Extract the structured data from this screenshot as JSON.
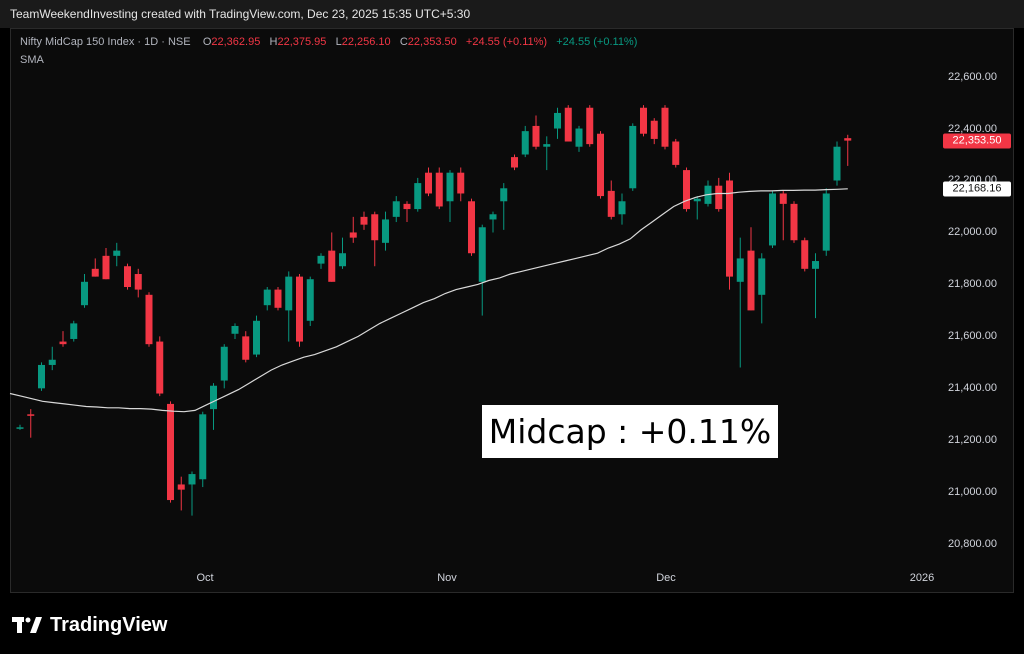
{
  "header": {
    "attribution": "TeamWeekendInvesting created with TradingView.com, Dec 23, 2025 15:35 UTC+5:30"
  },
  "legend": {
    "symbol": "Nifty MidCap 150 Index · 1D · NSE",
    "o_label": "O",
    "o_value": "22,362.95",
    "h_label": "H",
    "h_value": "22,375.95",
    "l_label": "L",
    "l_value": "22,256.10",
    "c_label": "C",
    "c_value": "22,353.50",
    "change": "+24.55 (+0.11%)",
    "sma_change": "+24.55 (+0.11%)",
    "indicator": "SMA"
  },
  "annotation": {
    "text": "Midcap : +0.11%"
  },
  "price_tags": {
    "last": "22,353.50",
    "sma": "22,168.16"
  },
  "footer": {
    "brand": "TradingView"
  },
  "colors": {
    "up": "#089981",
    "down": "#f23645",
    "sma": "#d9d9d9",
    "background": "#0b0b0b"
  },
  "chart_data": {
    "type": "candlestick",
    "title": "",
    "x_ticks": [
      "Oct",
      "Nov",
      "Dec",
      "2026"
    ],
    "y_ticks": [
      "20,800.00",
      "21,000.00",
      "21,200.00",
      "21,400.00",
      "21,600.00",
      "21,800.00",
      "22,000.00",
      "22,200.00",
      "22,400.00",
      "22,600.00"
    ],
    "y_tick_values": [
      20800,
      21000,
      21200,
      21400,
      21600,
      21800,
      22000,
      22200,
      22400,
      22600
    ],
    "ylim": [
      20720,
      22760
    ],
    "candles": [
      {
        "o": 21250,
        "h": 21260,
        "l": 21240,
        "c": 21250,
        "d": "up"
      },
      {
        "o": 21300,
        "h": 21320,
        "l": 21210,
        "c": 21300,
        "d": "down"
      },
      {
        "o": 21400,
        "h": 21500,
        "l": 21390,
        "c": 21490,
        "d": "up"
      },
      {
        "o": 21490,
        "h": 21560,
        "l": 21470,
        "c": 21510,
        "d": "up"
      },
      {
        "o": 21580,
        "h": 21620,
        "l": 21560,
        "c": 21570,
        "d": "down"
      },
      {
        "o": 21590,
        "h": 21660,
        "l": 21580,
        "c": 21650,
        "d": "up"
      },
      {
        "o": 21720,
        "h": 21840,
        "l": 21710,
        "c": 21810,
        "d": "up"
      },
      {
        "o": 21860,
        "h": 21900,
        "l": 21830,
        "c": 21830,
        "d": "down"
      },
      {
        "o": 21910,
        "h": 21940,
        "l": 21820,
        "c": 21820,
        "d": "down"
      },
      {
        "o": 21910,
        "h": 21960,
        "l": 21870,
        "c": 21930,
        "d": "up"
      },
      {
        "o": 21870,
        "h": 21880,
        "l": 21780,
        "c": 21790,
        "d": "down"
      },
      {
        "o": 21840,
        "h": 21860,
        "l": 21750,
        "c": 21780,
        "d": "down"
      },
      {
        "o": 21760,
        "h": 21770,
        "l": 21560,
        "c": 21570,
        "d": "down"
      },
      {
        "o": 21580,
        "h": 21600,
        "l": 21370,
        "c": 21380,
        "d": "down"
      },
      {
        "o": 21340,
        "h": 21350,
        "l": 20960,
        "c": 20970,
        "d": "down"
      },
      {
        "o": 21030,
        "h": 21060,
        "l": 20930,
        "c": 21010,
        "d": "down"
      },
      {
        "o": 21030,
        "h": 21080,
        "l": 20910,
        "c": 21070,
        "d": "up"
      },
      {
        "o": 21050,
        "h": 21310,
        "l": 21020,
        "c": 21300,
        "d": "up"
      },
      {
        "o": 21320,
        "h": 21420,
        "l": 21240,
        "c": 21410,
        "d": "up"
      },
      {
        "o": 21430,
        "h": 21570,
        "l": 21400,
        "c": 21560,
        "d": "up"
      },
      {
        "o": 21610,
        "h": 21650,
        "l": 21590,
        "c": 21640,
        "d": "up"
      },
      {
        "o": 21600,
        "h": 21620,
        "l": 21500,
        "c": 21510,
        "d": "down"
      },
      {
        "o": 21530,
        "h": 21680,
        "l": 21520,
        "c": 21660,
        "d": "up"
      },
      {
        "o": 21720,
        "h": 21790,
        "l": 21700,
        "c": 21780,
        "d": "up"
      },
      {
        "o": 21780,
        "h": 21790,
        "l": 21700,
        "c": 21710,
        "d": "down"
      },
      {
        "o": 21700,
        "h": 21850,
        "l": 21580,
        "c": 21830,
        "d": "up"
      },
      {
        "o": 21830,
        "h": 21840,
        "l": 21560,
        "c": 21580,
        "d": "down"
      },
      {
        "o": 21660,
        "h": 21830,
        "l": 21640,
        "c": 21820,
        "d": "up"
      },
      {
        "o": 21880,
        "h": 21920,
        "l": 21860,
        "c": 21910,
        "d": "up"
      },
      {
        "o": 21930,
        "h": 22000,
        "l": 21810,
        "c": 21810,
        "d": "down"
      },
      {
        "o": 21870,
        "h": 21980,
        "l": 21860,
        "c": 21920,
        "d": "up"
      },
      {
        "o": 22000,
        "h": 22060,
        "l": 21960,
        "c": 21980,
        "d": "down"
      },
      {
        "o": 22030,
        "h": 22080,
        "l": 22010,
        "c": 22060,
        "d": "down"
      },
      {
        "o": 22070,
        "h": 22080,
        "l": 21870,
        "c": 21970,
        "d": "down"
      },
      {
        "o": 21960,
        "h": 22080,
        "l": 21930,
        "c": 22050,
        "d": "up"
      },
      {
        "o": 22060,
        "h": 22140,
        "l": 22040,
        "c": 22120,
        "d": "up"
      },
      {
        "o": 22110,
        "h": 22120,
        "l": 22040,
        "c": 22090,
        "d": "down"
      },
      {
        "o": 22090,
        "h": 22210,
        "l": 22080,
        "c": 22190,
        "d": "up"
      },
      {
        "o": 22230,
        "h": 22250,
        "l": 22140,
        "c": 22150,
        "d": "down"
      },
      {
        "o": 22230,
        "h": 22250,
        "l": 22090,
        "c": 22100,
        "d": "down"
      },
      {
        "o": 22120,
        "h": 22240,
        "l": 22040,
        "c": 22230,
        "d": "up"
      },
      {
        "o": 22230,
        "h": 22250,
        "l": 22120,
        "c": 22150,
        "d": "down"
      },
      {
        "o": 22120,
        "h": 22130,
        "l": 21910,
        "c": 21920,
        "d": "down"
      },
      {
        "o": 21810,
        "h": 22030,
        "l": 21680,
        "c": 22020,
        "d": "up"
      },
      {
        "o": 22050,
        "h": 22080,
        "l": 22000,
        "c": 22070,
        "d": "up"
      },
      {
        "o": 22120,
        "h": 22190,
        "l": 22010,
        "c": 22170,
        "d": "up"
      },
      {
        "o": 22250,
        "h": 22300,
        "l": 22240,
        "c": 22290,
        "d": "down"
      },
      {
        "o": 22300,
        "h": 22410,
        "l": 22290,
        "c": 22390,
        "d": "up"
      },
      {
        "o": 22410,
        "h": 22450,
        "l": 22320,
        "c": 22330,
        "d": "down"
      },
      {
        "o": 22330,
        "h": 22370,
        "l": 22240,
        "c": 22340,
        "d": "up"
      },
      {
        "o": 22400,
        "h": 22480,
        "l": 22360,
        "c": 22460,
        "d": "up"
      },
      {
        "o": 22480,
        "h": 22490,
        "l": 22350,
        "c": 22350,
        "d": "down"
      },
      {
        "o": 22330,
        "h": 22410,
        "l": 22310,
        "c": 22400,
        "d": "up"
      },
      {
        "o": 22480,
        "h": 22490,
        "l": 22330,
        "c": 22340,
        "d": "down"
      },
      {
        "o": 22380,
        "h": 22390,
        "l": 22130,
        "c": 22140,
        "d": "down"
      },
      {
        "o": 22160,
        "h": 22200,
        "l": 22050,
        "c": 22060,
        "d": "down"
      },
      {
        "o": 22070,
        "h": 22150,
        "l": 22030,
        "c": 22120,
        "d": "up"
      },
      {
        "o": 22170,
        "h": 22420,
        "l": 22160,
        "c": 22410,
        "d": "up"
      },
      {
        "o": 22480,
        "h": 22490,
        "l": 22370,
        "c": 22380,
        "d": "down"
      },
      {
        "o": 22430,
        "h": 22440,
        "l": 22340,
        "c": 22360,
        "d": "down"
      },
      {
        "o": 22480,
        "h": 22490,
        "l": 22320,
        "c": 22330,
        "d": "down"
      },
      {
        "o": 22350,
        "h": 22360,
        "l": 22250,
        "c": 22260,
        "d": "down"
      },
      {
        "o": 22240,
        "h": 22250,
        "l": 22080,
        "c": 22090,
        "d": "down"
      },
      {
        "o": 22120,
        "h": 22140,
        "l": 22050,
        "c": 22130,
        "d": "up"
      },
      {
        "o": 22180,
        "h": 22200,
        "l": 22100,
        "c": 22110,
        "d": "up"
      },
      {
        "o": 22180,
        "h": 22210,
        "l": 22080,
        "c": 22090,
        "d": "down"
      },
      {
        "o": 22200,
        "h": 22230,
        "l": 21780,
        "c": 21830,
        "d": "down"
      },
      {
        "o": 21810,
        "h": 21980,
        "l": 21480,
        "c": 21900,
        "d": "up"
      },
      {
        "o": 21930,
        "h": 22020,
        "l": 21700,
        "c": 21700,
        "d": "down"
      },
      {
        "o": 21760,
        "h": 21920,
        "l": 21650,
        "c": 21900,
        "d": "up"
      },
      {
        "o": 21950,
        "h": 22160,
        "l": 21940,
        "c": 22150,
        "d": "up"
      },
      {
        "o": 22150,
        "h": 22160,
        "l": 21970,
        "c": 22110,
        "d": "down"
      },
      {
        "o": 22110,
        "h": 22120,
        "l": 21960,
        "c": 21970,
        "d": "down"
      },
      {
        "o": 21970,
        "h": 21980,
        "l": 21850,
        "c": 21860,
        "d": "down"
      },
      {
        "o": 21860,
        "h": 21920,
        "l": 21670,
        "c": 21890,
        "d": "up"
      },
      {
        "o": 21930,
        "h": 22170,
        "l": 21910,
        "c": 22150,
        "d": "up"
      },
      {
        "o": 22200,
        "h": 22350,
        "l": 22180,
        "c": 22330,
        "d": "up"
      },
      {
        "o": 22362.95,
        "h": 22375.95,
        "l": 22256.1,
        "c": 22353.5,
        "d": "down"
      }
    ],
    "sma": [
      21380,
      21370,
      21360,
      21350,
      21345,
      21340,
      21335,
      21330,
      21328,
      21325,
      21325,
      21322,
      21322,
      21320,
      21315,
      21312,
      21310,
      21315,
      21335,
      21355,
      21375,
      21395,
      21420,
      21445,
      21470,
      21490,
      21505,
      21520,
      21530,
      21545,
      21560,
      21580,
      21600,
      21625,
      21650,
      21670,
      21690,
      21710,
      21730,
      21745,
      21765,
      21780,
      21790,
      21800,
      21815,
      21825,
      21840,
      21850,
      21860,
      21870,
      21880,
      21890,
      21900,
      21910,
      21920,
      21940,
      21955,
      21975,
      22010,
      22040,
      22070,
      22100,
      22120,
      22135,
      22145,
      22150,
      22150,
      22155,
      22158,
      22160,
      22160,
      22162,
      22162,
      22163,
      22163,
      22165,
      22166,
      22168.16
    ]
  }
}
